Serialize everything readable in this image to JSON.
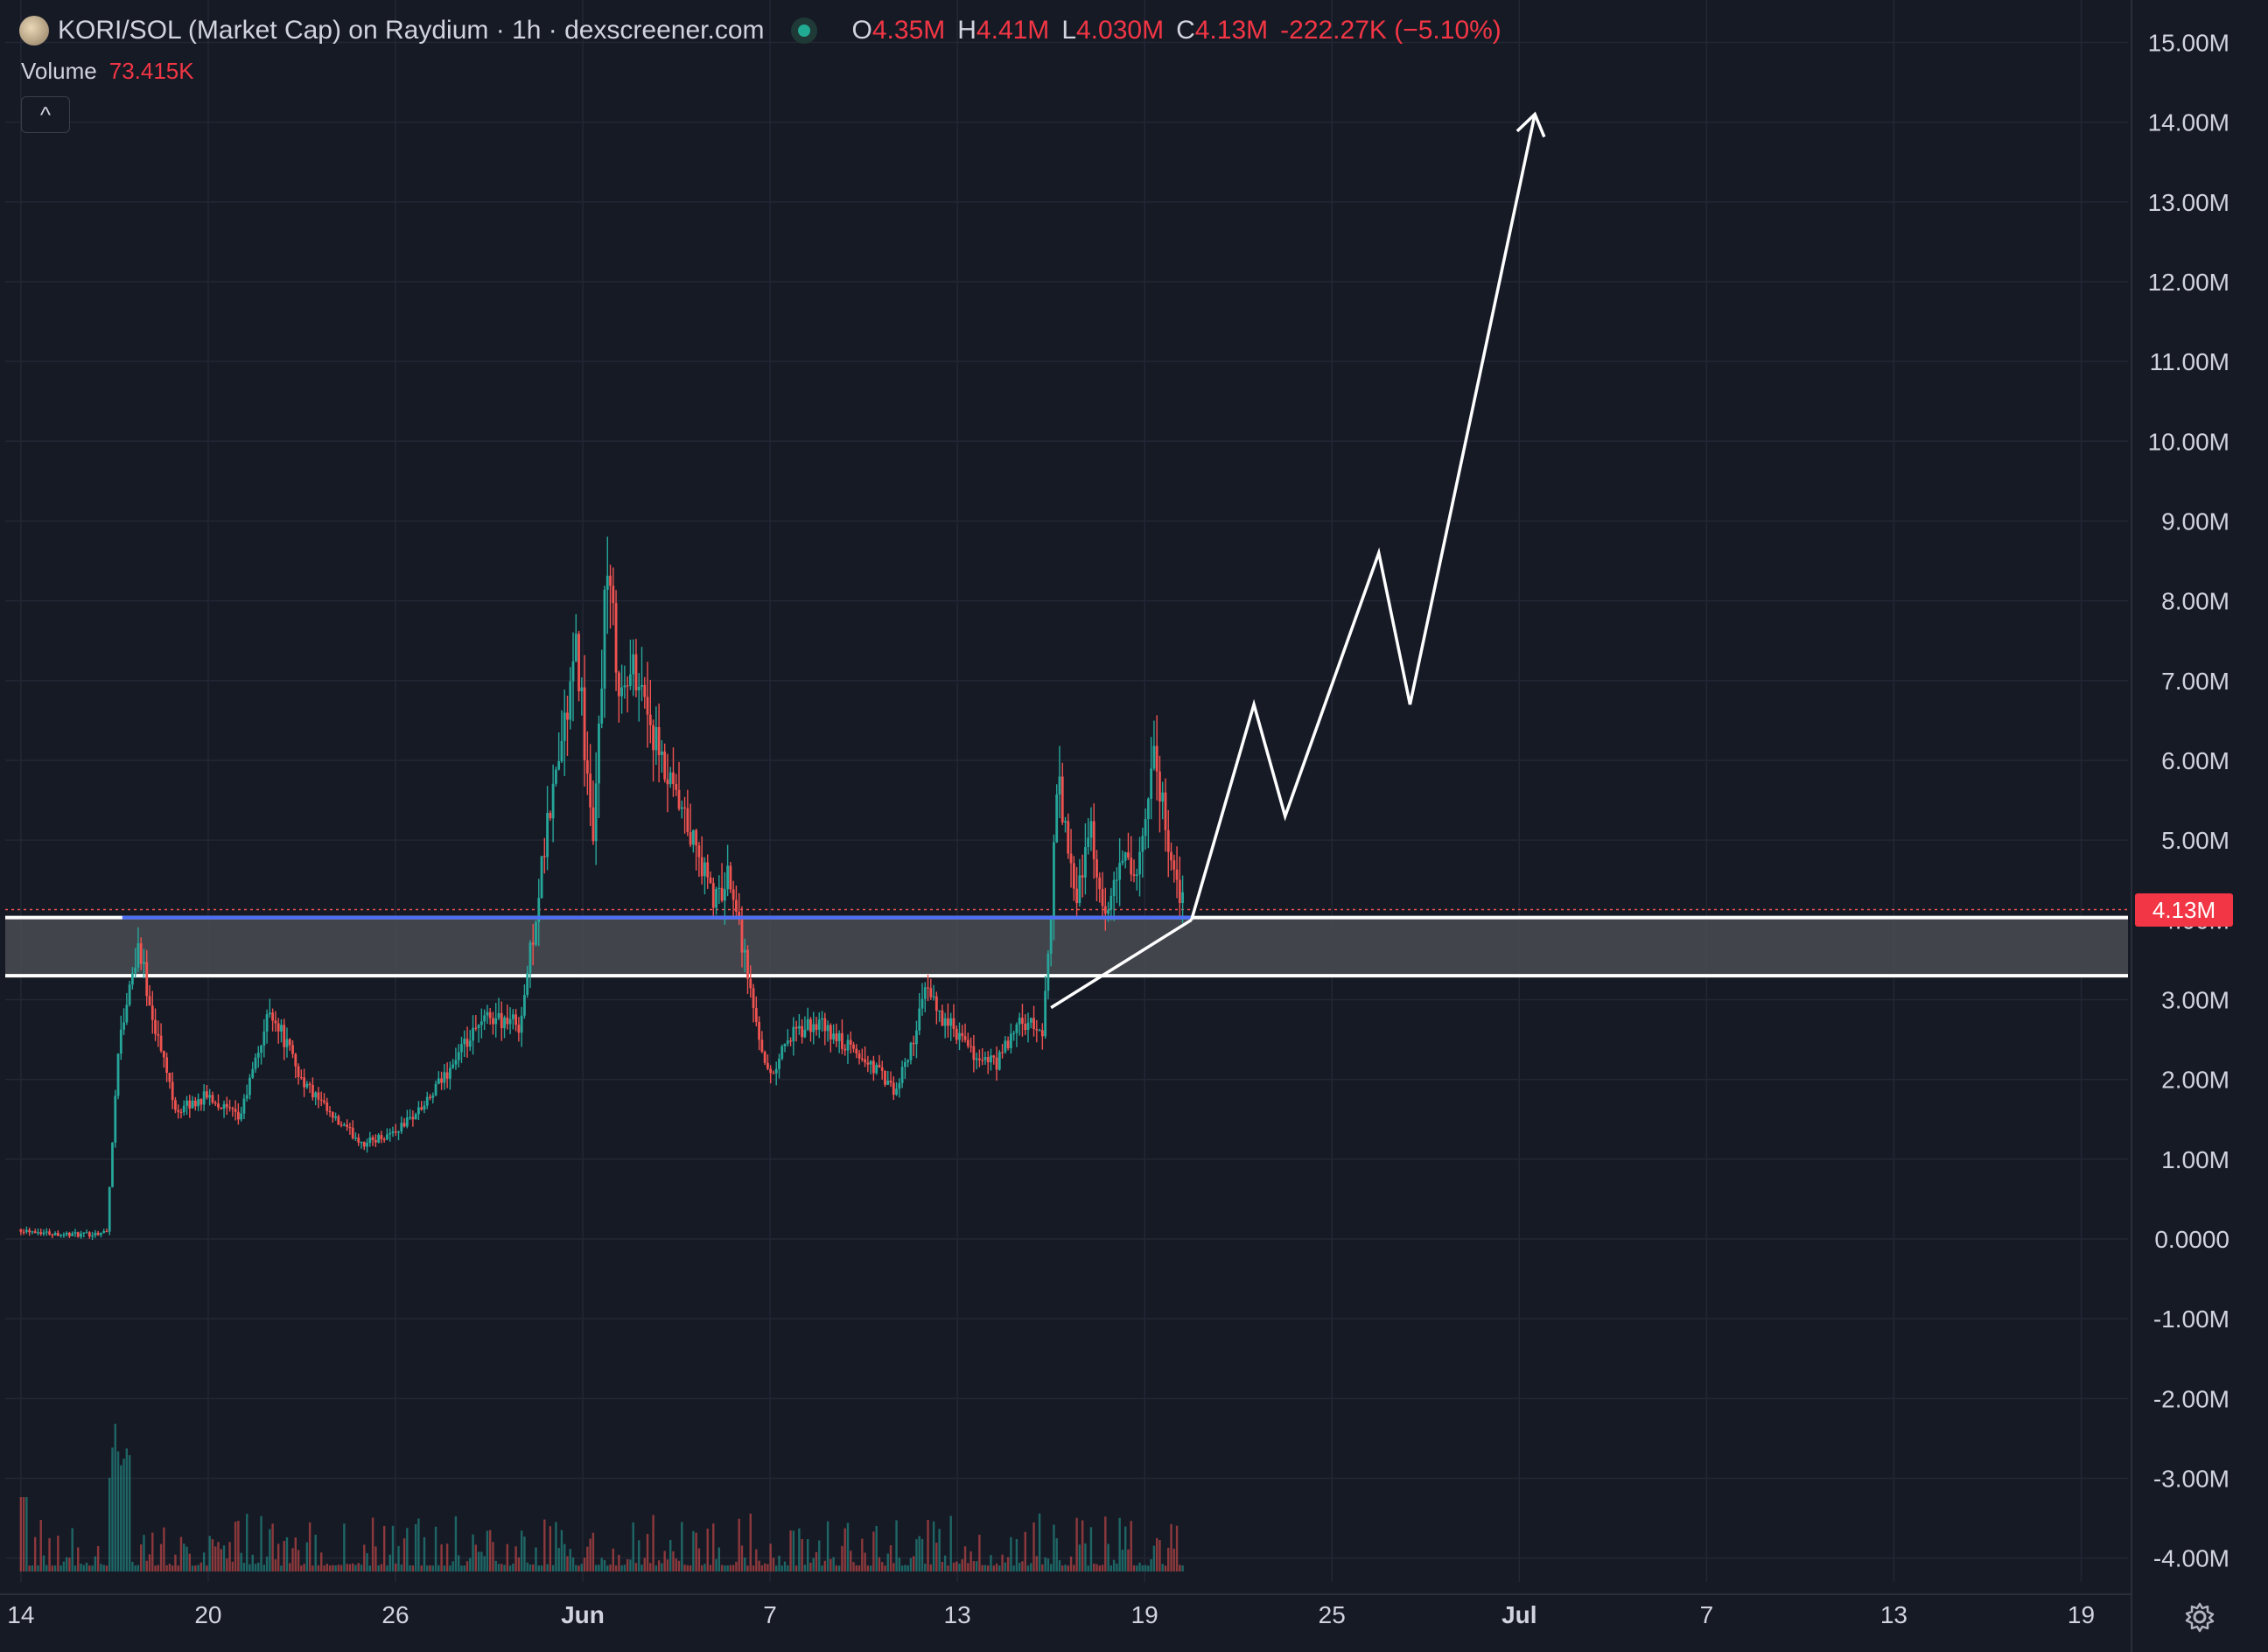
{
  "header": {
    "title": "KORI/SOL (Market Cap) on Raydium · 1h · dexscreener.com",
    "open_label": "O",
    "open": "4.35M",
    "high_label": "H",
    "high": "4.41M",
    "low_label": "L",
    "low": "4.030M",
    "close_label": "C",
    "close": "4.13M",
    "change": "-222.27K (−5.10%)"
  },
  "volume": {
    "label": "Volume",
    "value": "73.415K"
  },
  "collapse_glyph": "^",
  "last_price_badge": "4.13M",
  "colors": {
    "background": "#161a25",
    "grid": "#232735",
    "up": "#26a69a",
    "down": "#ef5350",
    "badge": "#f23645",
    "zone_fill": "#4a4c53",
    "zone_border": "#ffffff",
    "support_line": "#4c6ef5",
    "drawing": "#ffffff"
  },
  "chart_data": {
    "type": "candlestick",
    "pair": "KORI/SOL",
    "interval": "1h",
    "y_unit": "market cap (USD)",
    "ylim": [
      -4300000,
      15400000
    ],
    "yticks": [
      15000000,
      14000000,
      13000000,
      12000000,
      11000000,
      10000000,
      9000000,
      8000000,
      7000000,
      6000000,
      5000000,
      4000000,
      3000000,
      2000000,
      1000000,
      0,
      -1000000,
      -2000000,
      -3000000,
      -4000000
    ],
    "ytick_labels": [
      "15.00M",
      "14.00M",
      "13.00M",
      "12.00M",
      "11.00M",
      "10.00M",
      "9.00M",
      "8.00M",
      "7.00M",
      "6.00M",
      "5.00M",
      "4.00M",
      "3.00M",
      "2.00M",
      "1.00M",
      "0.0000",
      "-1.00M",
      "-2.00M",
      "-3.00M",
      "-4.00M"
    ],
    "xlim": [
      "2024-05-13T12:00",
      "2024-07-20T12:00"
    ],
    "xticks": [
      "2024-05-14",
      "2024-05-20",
      "2024-05-26",
      "2024-06-01",
      "2024-06-07",
      "2024-06-13",
      "2024-06-19",
      "2024-06-25",
      "2024-07-01",
      "2024-07-07",
      "2024-07-13",
      "2024-07-19"
    ],
    "xtick_labels": [
      "14",
      "20",
      "26",
      "Jun",
      "7",
      "13",
      "19",
      "25",
      "Jul",
      "7",
      "13",
      "19"
    ],
    "xtick_bold": [
      false,
      false,
      false,
      true,
      false,
      false,
      false,
      false,
      true,
      false,
      false,
      false
    ],
    "price_path": [
      [
        "2024-05-14T00:00",
        120000.0
      ],
      [
        "2024-05-15T00:00",
        70000.0
      ],
      [
        "2024-05-16T00:00",
        50000.0
      ],
      [
        "2024-05-16T18:00",
        90000.0
      ],
      [
        "2024-05-17T03:00",
        2400000.0
      ],
      [
        "2024-05-17T18:00",
        3700000.0
      ],
      [
        "2024-05-18T08:00",
        2600000.0
      ],
      [
        "2024-05-19T00:00",
        1600000.0
      ],
      [
        "2024-05-20T00:00",
        1800000.0
      ],
      [
        "2024-05-21T00:00",
        1500000.0
      ],
      [
        "2024-05-22T00:00",
        2900000.0
      ],
      [
        "2024-05-23T00:00",
        2000000.0
      ],
      [
        "2024-05-24T00:00",
        1500000.0
      ],
      [
        "2024-05-25T00:00",
        1200000.0
      ],
      [
        "2024-05-26T00:00",
        1350000.0
      ],
      [
        "2024-05-27T00:00",
        1700000.0
      ],
      [
        "2024-05-28T00:00",
        2300000.0
      ],
      [
        "2024-05-29T00:00",
        2800000.0
      ],
      [
        "2024-05-30T00:00",
        2700000.0
      ],
      [
        "2024-05-31T00:00",
        5500000.0
      ],
      [
        "2024-05-31T20:00",
        7400000.0
      ],
      [
        "2024-06-01T08:00",
        4800000.0
      ],
      [
        "2024-06-01T18:00",
        8400000.0
      ],
      [
        "2024-06-02T06:00",
        6800000.0
      ],
      [
        "2024-06-02T18:00",
        7200000.0
      ],
      [
        "2024-06-03T12:00",
        5900000.0
      ],
      [
        "2024-06-04T12:00",
        5000000.0
      ],
      [
        "2024-06-05T06:00",
        4200000.0
      ],
      [
        "2024-06-05T18:00",
        4600000.0
      ],
      [
        "2024-06-06T12:00",
        2800000.0
      ],
      [
        "2024-06-07T00:00",
        2000000.0
      ],
      [
        "2024-06-07T12:00",
        2500000.0
      ],
      [
        "2024-06-08T12:00",
        2700000.0
      ],
      [
        "2024-06-09T12:00",
        2400000.0
      ],
      [
        "2024-06-10T12:00",
        2100000.0
      ],
      [
        "2024-06-11T00:00",
        1800000.0
      ],
      [
        "2024-06-11T12:00",
        2400000.0
      ],
      [
        "2024-06-12T00:00",
        3100000.0
      ],
      [
        "2024-06-12T12:00",
        2800000.0
      ],
      [
        "2024-06-13T12:00",
        2300000.0
      ],
      [
        "2024-06-14T06:00",
        2200000.0
      ],
      [
        "2024-06-15T00:00",
        2700000.0
      ],
      [
        "2024-06-15T18:00",
        2600000.0
      ],
      [
        "2024-06-16T06:00",
        5800000.0
      ],
      [
        "2024-06-16T18:00",
        4200000.0
      ],
      [
        "2024-06-17T06:00",
        5200000.0
      ],
      [
        "2024-06-17T18:00",
        3900000.0
      ],
      [
        "2024-06-18T06:00",
        4800000.0
      ],
      [
        "2024-06-18T18:00",
        4400000.0
      ],
      [
        "2024-06-19T06:00",
        6200000.0
      ],
      [
        "2024-06-19T18:00",
        5000000.0
      ],
      [
        "2024-06-20T06:00",
        4130000.0
      ]
    ],
    "last_price": 4130000,
    "support_zone": {
      "low": 3300000,
      "high": 4030000
    },
    "support_line": 4030000,
    "trendline": [
      [
        "2024-06-16T00:00",
        2900000.0
      ],
      [
        "2024-06-20T12:00",
        4000000.0
      ]
    ],
    "projection": [
      [
        "2024-06-20T12:00",
        4000000.0
      ],
      [
        "2024-06-22T12:00",
        6700000.0
      ],
      [
        "2024-06-23T12:00",
        5300000.0
      ],
      [
        "2024-06-26T12:00",
        8600000.0
      ],
      [
        "2024-06-27T12:00",
        6700000.0
      ],
      [
        "2024-07-01T12:00",
        14100000.0
      ]
    ],
    "volume_max": 1600000.0
  }
}
